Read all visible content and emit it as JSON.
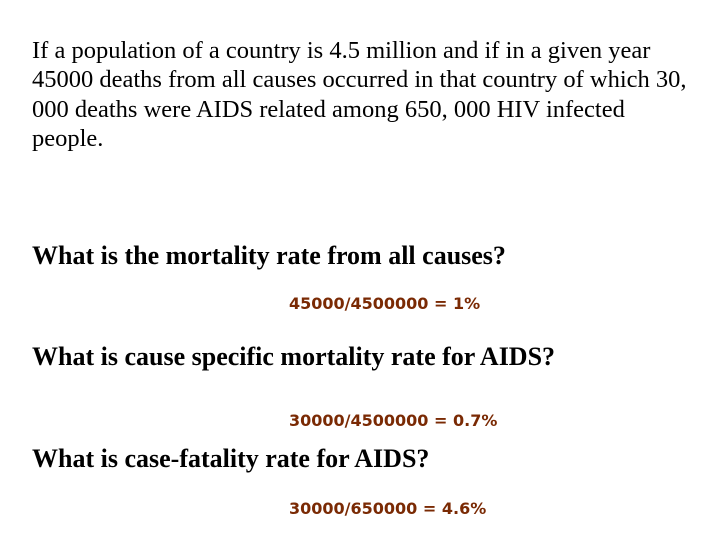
{
  "slide": {
    "intro_text": "If a population of a country is 4.5 million and if in a given year 45000 deaths from all causes occurred in that country of which 30, 000 deaths were AIDS related among 650, 000 HIV infected people.",
    "questions": [
      {
        "question": "What is the mortality rate from all causes?",
        "answer": "45000/4500000 = 1%"
      },
      {
        "question": "What is cause specific mortality rate for AIDS?",
        "answer": "30000/4500000 = 0.7%"
      },
      {
        "question": "What is case-fatality rate for AIDS?",
        "answer": "30000/650000 = 4.6%"
      }
    ]
  },
  "colors": {
    "text": "#000000",
    "answer": "#7a2a04",
    "background": "#ffffff"
  }
}
